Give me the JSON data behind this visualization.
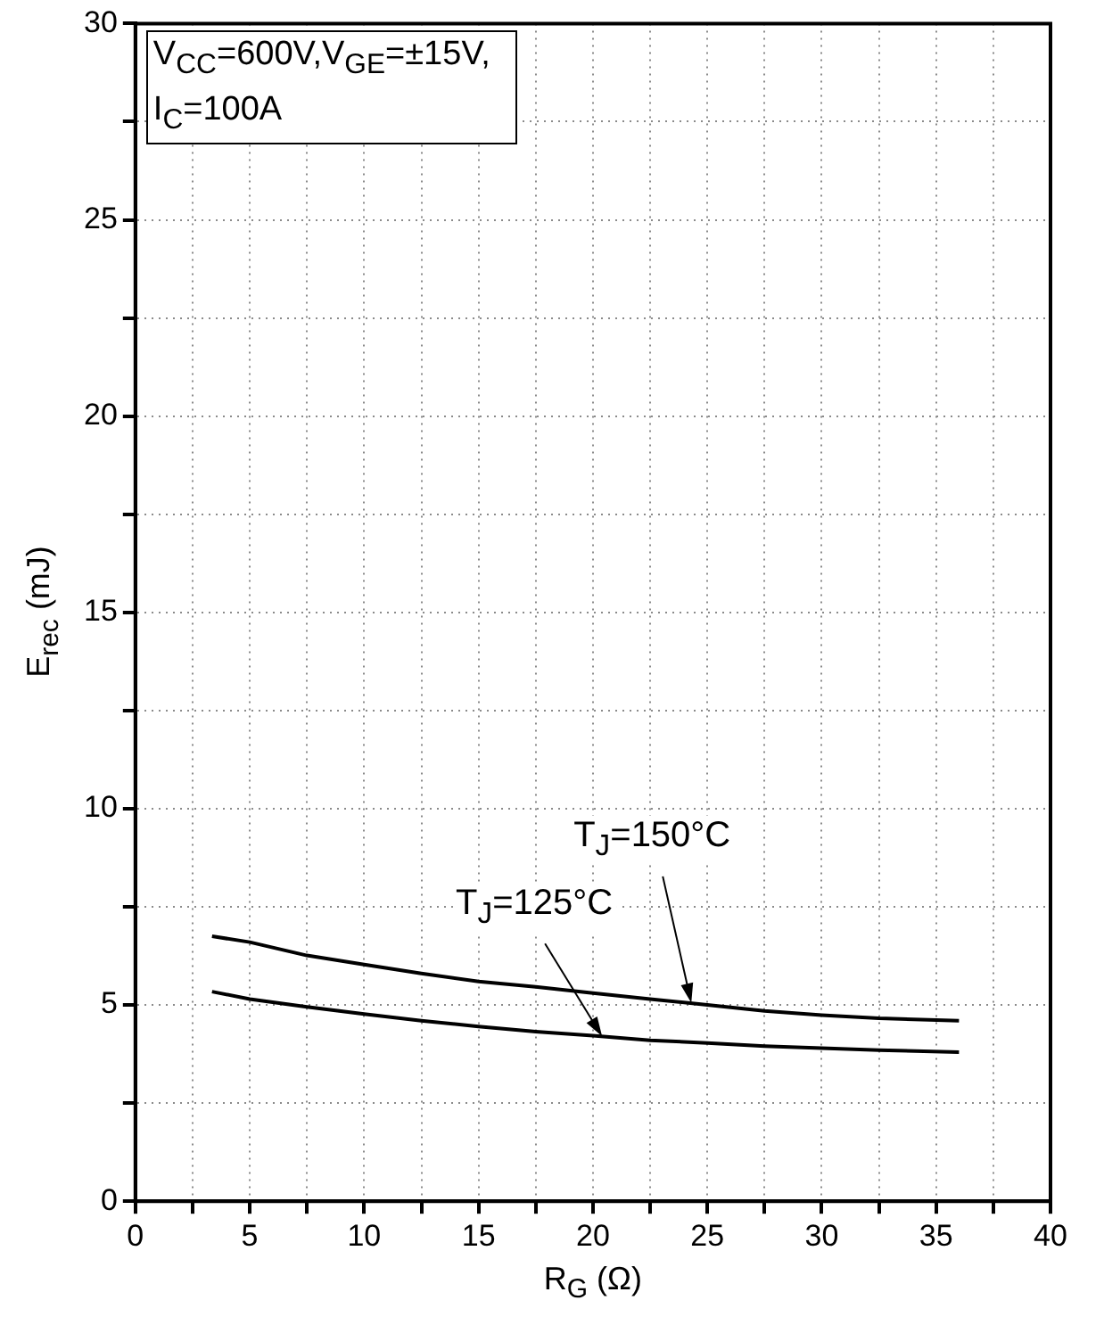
{
  "chart_data": {
    "type": "line",
    "xlabel": "R$_{G}$ (Ω)",
    "ylabel": "E$_{rec}$ (mJ)",
    "xlim": [
      0,
      40
    ],
    "xticks": [
      0,
      {
        "value": 2.5,
        "label": null
      },
      5,
      {
        "value": 7.5,
        "label": null
      },
      10,
      {
        "value": 12.5,
        "label": null
      },
      15,
      {
        "value": 17.5,
        "label": null
      },
      20,
      {
        "value": 22.5,
        "label": null
      },
      25,
      {
        "value": 27.5,
        "label": null
      },
      30,
      {
        "value": 32.5,
        "label": null
      },
      35,
      {
        "value": 37.5,
        "label": null
      },
      40
    ],
    "ylim": [
      0,
      30
    ],
    "yticks": [
      0,
      {
        "value": 2.5,
        "label": null
      },
      5,
      {
        "value": 7.5,
        "label": null
      },
      10,
      {
        "value": 12.5,
        "label": null
      },
      15,
      {
        "value": 17.5,
        "label": null
      },
      20,
      {
        "value": 22.5,
        "label": null
      },
      25,
      {
        "value": 27.5,
        "label": null
      },
      30
    ],
    "grid": true,
    "legend": false,
    "marker": "none",
    "line_style": "solid",
    "series": [
      {
        "color": "#000000",
        "x": [
          3.35,
          5,
          7.5,
          10,
          12.5,
          15,
          17.5,
          20,
          22.5,
          25,
          27.5,
          30,
          32.5,
          36
        ],
        "values": [
          6.75,
          6.6,
          6.26,
          6.03,
          5.8,
          5.6,
          5.46,
          5.3,
          5.15,
          5.0,
          4.85,
          4.74,
          4.66,
          4.6
        ]
      },
      {
        "color": "#000000",
        "x": [
          3.35,
          5,
          7.5,
          10,
          12.5,
          15,
          17.5,
          20,
          22.5,
          25,
          27.5,
          30,
          32.5,
          36
        ],
        "values": [
          5.34,
          5.15,
          4.95,
          4.77,
          4.6,
          4.45,
          4.32,
          4.22,
          4.1,
          4.03,
          3.95,
          3.9,
          3.85,
          3.8
        ]
      }
    ],
    "annotations": [
      "V$_{CC}$=600V,V$_{GE}$=±15V, I$_{C}$=100A",
      {
        "text": "T$_{J}$=150°C",
        "x": 24.3,
        "y": 5.05
      },
      {
        "text": "T$_{J}$=125°C",
        "x": 20.4,
        "y": 4.2
      }
    ]
  }
}
